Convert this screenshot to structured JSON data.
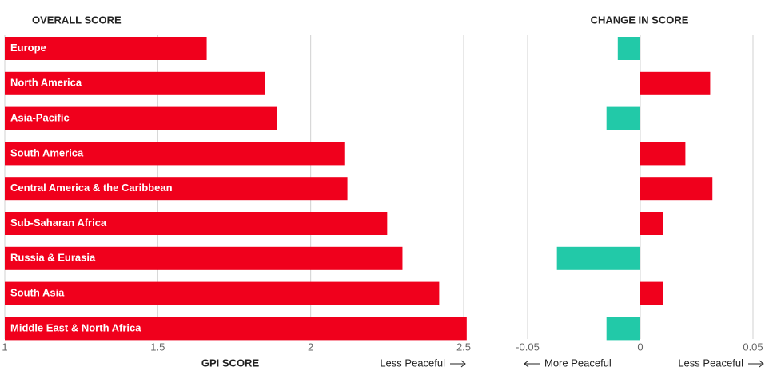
{
  "chart_data": [
    {
      "type": "hbar",
      "title": "OVERALL SCORE",
      "xlabel": "GPI SCORE",
      "annotation": "Less Peaceful",
      "categories": [
        "Europe",
        "North America",
        "Asia-Pacific",
        "South America",
        "Central America & the Caribbean",
        "Sub-Saharan Africa",
        "Russia & Eurasia",
        "South Asia",
        "Middle East & North Africa"
      ],
      "values": [
        1.66,
        1.85,
        1.89,
        2.11,
        2.12,
        2.25,
        2.3,
        2.42,
        2.51
      ],
      "color": "#f0001c",
      "xlim": [
        1,
        2.5
      ],
      "xticks": [
        1,
        1.5,
        2,
        2.5
      ],
      "grid": true
    },
    {
      "type": "hbar-diverging",
      "title": "CHANGE IN SCORE",
      "annotation_left": "More Peaceful",
      "annotation_right": "Less Peaceful",
      "values": [
        -0.01,
        0.031,
        -0.015,
        0.02,
        0.032,
        0.01,
        -0.037,
        0.01,
        -0.015
      ],
      "positive_color": "#f0001c",
      "negative_color": "#22c9a8",
      "xlim": [
        -0.05,
        0.05
      ],
      "xticks": [
        -0.05,
        0,
        0.05
      ],
      "grid": true
    }
  ]
}
